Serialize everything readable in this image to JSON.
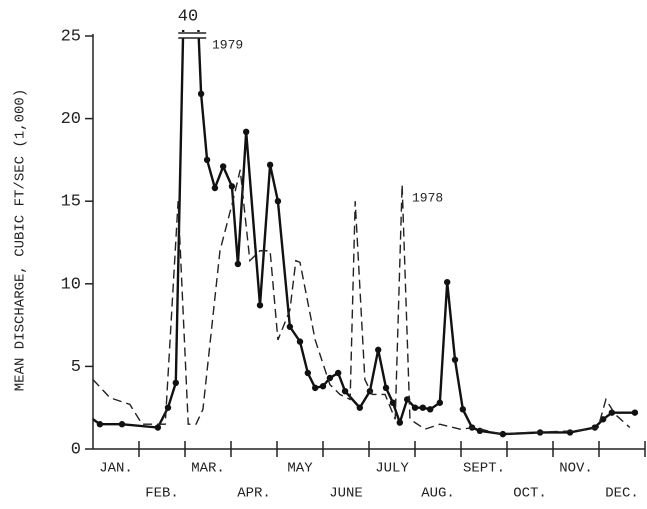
{
  "chart_data": {
    "type": "line",
    "y_label": "MEAN DISCHARGE, CUBIC FT/SEC (1,000)",
    "categories": [
      "JAN.",
      "FEB.",
      "MAR.",
      "APR.",
      "MAY",
      "JUNE",
      "JULY",
      "AUG.",
      "SEPT.",
      "OCT.",
      "NOV.",
      "DEC."
    ],
    "xlim": [
      0,
      12
    ],
    "ylim": [
      0,
      25
    ],
    "yticks": [
      0,
      5,
      10,
      15,
      20,
      25
    ],
    "annotations": [
      "40"
    ],
    "series": [
      {
        "name": "1979",
        "color": "#111111",
        "dash": false,
        "markers": true,
        "x": [
          0,
          0.15,
          0.63,
          1.41,
          1.63,
          1.8,
          2.07,
          2.35,
          2.48,
          2.65,
          2.83,
          3.02,
          3.15,
          3.33,
          3.63,
          3.85,
          4.02,
          4.28,
          4.5,
          4.67,
          4.83,
          5,
          5.15,
          5.33,
          5.48,
          5.8,
          6.02,
          6.2,
          6.37,
          6.52,
          6.67,
          6.83,
          7,
          7.17,
          7.33,
          7.54,
          7.7,
          7.87,
          8.04,
          8.24,
          8.41,
          8.91,
          9.72,
          10.37,
          10.91,
          11.09,
          11.28,
          11.78
        ],
        "values": [
          1.8,
          1.5,
          1.5,
          1.3,
          2.5,
          4,
          40,
          21.5,
          17.5,
          15.8,
          17.1,
          15.9,
          11.2,
          19.2,
          8.7,
          17.2,
          15,
          7.4,
          6.5,
          4.6,
          3.7,
          3.8,
          4.3,
          4.6,
          3.5,
          2.5,
          3.5,
          6,
          3.7,
          2.8,
          1.6,
          3,
          2.5,
          2.5,
          2.4,
          2.8,
          10.1,
          5.4,
          2.4,
          1.3,
          1.1,
          0.9,
          1,
          1,
          1.3,
          1.8,
          2.2,
          2.2
        ]
      },
      {
        "name": "1978",
        "color": "#222222",
        "dash": true,
        "markers": false,
        "x": [
          0,
          0.37,
          0.8,
          1.07,
          1.57,
          1.85,
          2.07,
          2.24,
          2.39,
          2.76,
          3.04,
          3.2,
          3.41,
          3.63,
          3.85,
          4.02,
          4.28,
          4.41,
          4.5,
          4.83,
          5.15,
          5.37,
          5.59,
          5.7,
          5.91,
          6.07,
          6.35,
          6.57,
          6.72,
          6.89,
          7.22,
          7.54,
          7.98,
          8.3,
          8.85,
          9.5,
          10.48,
          10.98,
          11.15,
          11.35,
          11.67
        ],
        "values": [
          4.2,
          3.1,
          2.7,
          1.5,
          1.5,
          15,
          1.5,
          1.5,
          2.4,
          12,
          15,
          16.9,
          11.4,
          12,
          12,
          6.6,
          8.4,
          11.4,
          11.3,
          6.6,
          3.9,
          3.3,
          3,
          15,
          4.2,
          3.3,
          3.3,
          1.8,
          16,
          1.8,
          1.2,
          1.5,
          1.2,
          1.3,
          0.9,
          1,
          1.1,
          1.3,
          3,
          2.1,
          1.3
        ]
      }
    ]
  }
}
